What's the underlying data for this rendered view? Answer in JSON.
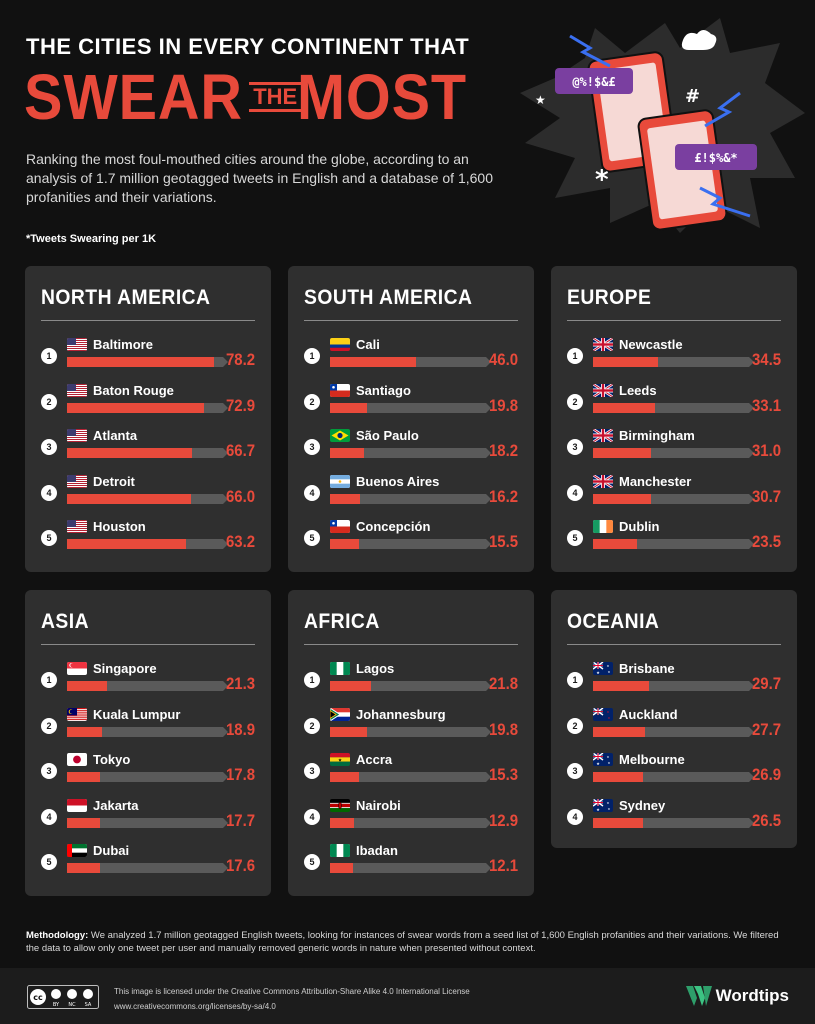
{
  "header": {
    "title_line1": "THE CITIES IN EVERY CONTINENT THAT",
    "title_swear": "SWEAR",
    "title_the": "THE",
    "title_most": "MOST",
    "subtitle": "Ranking the most foul-mouthed cities around the globe, according to an analysis of 1.7 million geotagged tweets in English and a database of 1,600 profanities and their variations.",
    "unit_note": "*Tweets Swearing per 1K"
  },
  "hero": {
    "bubble1": "@%!$&£",
    "bubble2": "£!$%&*"
  },
  "colors": {
    "accent": "#e84a3b",
    "panel": "#2f2f2f",
    "background": "#111111",
    "track": "#5a5a5a"
  },
  "chart_data": {
    "type": "bar",
    "unit": "Tweets Swearing per 1K",
    "scale_max": 80,
    "panels": [
      {
        "title": "NORTH AMERICA",
        "rows": [
          {
            "rank": "1",
            "city": "Baltimore",
            "flag": "us",
            "value": 78.2
          },
          {
            "rank": "2",
            "city": "Baton Rouge",
            "flag": "us",
            "value": 72.9
          },
          {
            "rank": "3",
            "city": "Atlanta",
            "flag": "us",
            "value": 66.7
          },
          {
            "rank": "4",
            "city": "Detroit",
            "flag": "us",
            "value": 66.0
          },
          {
            "rank": "5",
            "city": "Houston",
            "flag": "us",
            "value": 63.2
          }
        ]
      },
      {
        "title": "SOUTH AMERICA",
        "rows": [
          {
            "rank": "1",
            "city": "Cali",
            "flag": "co",
            "value": 46.0
          },
          {
            "rank": "2",
            "city": "Santiago",
            "flag": "cl",
            "value": 19.8
          },
          {
            "rank": "3",
            "city": "São Paulo",
            "flag": "br",
            "value": 18.2
          },
          {
            "rank": "4",
            "city": "Buenos Aires",
            "flag": "ar",
            "value": 16.2
          },
          {
            "rank": "5",
            "city": "Concepción",
            "flag": "cl",
            "value": 15.5
          }
        ]
      },
      {
        "title": "EUROPE",
        "rows": [
          {
            "rank": "1",
            "city": "Newcastle",
            "flag": "gb",
            "value": 34.5
          },
          {
            "rank": "2",
            "city": "Leeds",
            "flag": "gb",
            "value": 33.1
          },
          {
            "rank": "3",
            "city": "Birmingham",
            "flag": "gb",
            "value": 31.0
          },
          {
            "rank": "4",
            "city": "Manchester",
            "flag": "gb",
            "value": 30.7
          },
          {
            "rank": "5",
            "city": "Dublin",
            "flag": "ie",
            "value": 23.5
          }
        ]
      },
      {
        "title": "ASIA",
        "rows": [
          {
            "rank": "1",
            "city": "Singapore",
            "flag": "sg",
            "value": 21.3
          },
          {
            "rank": "2",
            "city": "Kuala Lumpur",
            "flag": "my",
            "value": 18.9
          },
          {
            "rank": "3",
            "city": "Tokyo",
            "flag": "jp",
            "value": 17.8
          },
          {
            "rank": "4",
            "city": "Jakarta",
            "flag": "id",
            "value": 17.7
          },
          {
            "rank": "5",
            "city": "Dubai",
            "flag": "ae",
            "value": 17.6
          }
        ]
      },
      {
        "title": "AFRICA",
        "rows": [
          {
            "rank": "1",
            "city": "Lagos",
            "flag": "ng",
            "value": 21.8
          },
          {
            "rank": "2",
            "city": "Johannesburg",
            "flag": "za",
            "value": 19.8
          },
          {
            "rank": "3",
            "city": "Accra",
            "flag": "gh",
            "value": 15.3
          },
          {
            "rank": "4",
            "city": "Nairobi",
            "flag": "ke",
            "value": 12.9
          },
          {
            "rank": "5",
            "city": "Ibadan",
            "flag": "ng",
            "value": 12.1
          }
        ]
      },
      {
        "title": "OCEANIA",
        "rows": [
          {
            "rank": "1",
            "city": "Brisbane",
            "flag": "au",
            "value": 29.7
          },
          {
            "rank": "2",
            "city": "Auckland",
            "flag": "nz",
            "value": 27.7
          },
          {
            "rank": "3",
            "city": "Melbourne",
            "flag": "au",
            "value": 26.9
          },
          {
            "rank": "4",
            "city": "Sydney",
            "flag": "au",
            "value": 26.5
          }
        ]
      }
    ]
  },
  "methodology": {
    "label": "Methodology:",
    "text": " We analyzed 1.7 million geotagged English tweets, looking for instances of swear words from a seed list of 1,600 English profanities and their variations. We filtered the data to allow only one tweet per user and manually removed generic words in nature when presented without context."
  },
  "footer": {
    "license_line1": "This image is licensed under the Creative Commons Attribution-Share Alike 4.0 International License",
    "license_line2": "www.creativecommons.org/licenses/by-sa/4.0",
    "cc_labels": [
      "BY",
      "NC",
      "SA"
    ],
    "brand": "Wordtips"
  }
}
